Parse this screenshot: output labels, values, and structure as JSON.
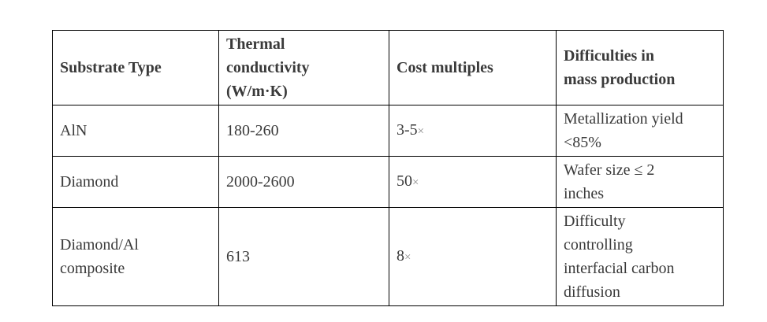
{
  "page": {
    "background_color": "#ffffff",
    "text_color": "#3a3a3a",
    "border_color": "#000000",
    "multiplier_symbol_color": "#8f8f8f"
  },
  "table": {
    "headers": {
      "substrate_type": {
        "lines": [
          "Substrate Type"
        ]
      },
      "thermal_conductivity": {
        "lines": [
          "Thermal",
          "conductivity",
          "(W/m·K)"
        ]
      },
      "cost_multiples": {
        "lines": [
          "Cost multiples"
        ]
      },
      "difficulties": {
        "lines": [
          "Difficulties in",
          "mass production"
        ]
      }
    },
    "rows": [
      {
        "substrate_type": {
          "lines": [
            "AlN"
          ]
        },
        "thermal_conductivity": "180-260",
        "cost": {
          "value": "3-5",
          "times_symbol": "×"
        },
        "difficulty": {
          "lines": [
            "Metallization yield",
            "<85%"
          ]
        }
      },
      {
        "substrate_type": {
          "lines": [
            "Diamond"
          ]
        },
        "thermal_conductivity": "2000-2600",
        "cost": {
          "value": "50",
          "times_symbol": "×"
        },
        "difficulty": {
          "lines": [
            "Wafer size ≤ 2",
            "inches"
          ]
        }
      },
      {
        "substrate_type": {
          "lines": [
            "Diamond/Al",
            "composite"
          ]
        },
        "thermal_conductivity": "613",
        "cost": {
          "value": "8",
          "times_symbol": "×"
        },
        "difficulty": {
          "lines": [
            "Difficulty",
            "controlling",
            "interfacial carbon",
            "diffusion"
          ]
        }
      }
    ]
  }
}
